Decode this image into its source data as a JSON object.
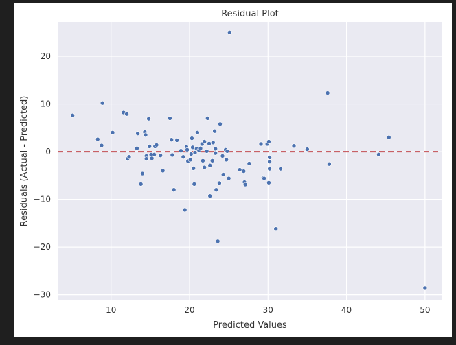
{
  "chart_data": {
    "type": "scatter",
    "title": "Residual Plot",
    "xlabel": "Predicted Values",
    "ylabel": "Residuals (Actual - Predicted)",
    "xlim": [
      3.2,
      52.2
    ],
    "ylim": [
      -31.2,
      27.2
    ],
    "xticks": [
      10,
      20,
      30,
      40,
      50
    ],
    "yticks": [
      -30,
      -20,
      -10,
      0,
      10,
      20
    ],
    "grid": true,
    "reference_line": {
      "y": 0,
      "style": "dashed",
      "color": "#c44e52"
    },
    "marker_color": "#4c72b0",
    "points": [
      [
        5.1,
        7.6
      ],
      [
        8.3,
        2.6
      ],
      [
        8.8,
        1.3
      ],
      [
        8.9,
        10.2
      ],
      [
        10.2,
        4.0
      ],
      [
        11.6,
        8.2
      ],
      [
        12.0,
        7.9
      ],
      [
        12.1,
        -1.5
      ],
      [
        12.3,
        -1.1
      ],
      [
        13.3,
        0.7
      ],
      [
        13.4,
        3.8
      ],
      [
        13.8,
        -6.8
      ],
      [
        14.0,
        -4.6
      ],
      [
        14.3,
        4.1
      ],
      [
        14.4,
        3.5
      ],
      [
        14.5,
        -0.9
      ],
      [
        14.5,
        -1.5
      ],
      [
        14.8,
        6.9
      ],
      [
        14.9,
        1.1
      ],
      [
        15.1,
        -0.6
      ],
      [
        15.2,
        -1.4
      ],
      [
        15.5,
        -0.6
      ],
      [
        15.6,
        1.1
      ],
      [
        15.8,
        1.4
      ],
      [
        16.3,
        -0.8
      ],
      [
        16.6,
        -4.0
      ],
      [
        17.5,
        7.0
      ],
      [
        17.7,
        2.5
      ],
      [
        17.8,
        -0.7
      ],
      [
        18.0,
        -8.0
      ],
      [
        18.4,
        2.4
      ],
      [
        18.9,
        0.2
      ],
      [
        19.2,
        -1.1
      ],
      [
        19.4,
        -12.2
      ],
      [
        19.6,
        1.0
      ],
      [
        19.7,
        0.4
      ],
      [
        19.8,
        -2.0
      ],
      [
        20.1,
        -1.7
      ],
      [
        20.2,
        -0.5
      ],
      [
        20.3,
        2.8
      ],
      [
        20.4,
        0.9
      ],
      [
        20.5,
        -3.5
      ],
      [
        20.6,
        -6.8
      ],
      [
        20.7,
        -0.2
      ],
      [
        20.9,
        0.6
      ],
      [
        21.0,
        4.0
      ],
      [
        21.2,
        0.3
      ],
      [
        21.4,
        0.7
      ],
      [
        21.6,
        1.6
      ],
      [
        21.7,
        -1.9
      ],
      [
        21.9,
        2.1
      ],
      [
        21.9,
        -3.3
      ],
      [
        22.2,
        0.1
      ],
      [
        22.3,
        7.0
      ],
      [
        22.5,
        1.7
      ],
      [
        22.6,
        -2.9
      ],
      [
        22.6,
        -9.3
      ],
      [
        22.9,
        -1.9
      ],
      [
        23.0,
        1.9
      ],
      [
        23.2,
        4.3
      ],
      [
        23.3,
        0.6
      ],
      [
        23.3,
        -0.3
      ],
      [
        23.4,
        -8.0
      ],
      [
        23.6,
        -18.8
      ],
      [
        23.8,
        -6.6
      ],
      [
        23.9,
        5.8
      ],
      [
        24.2,
        -0.9
      ],
      [
        24.3,
        -4.8
      ],
      [
        24.6,
        0.4
      ],
      [
        24.7,
        -1.7
      ],
      [
        24.8,
        0.1
      ],
      [
        25.0,
        -5.6
      ],
      [
        25.1,
        25.0
      ],
      [
        26.4,
        -3.8
      ],
      [
        26.9,
        -4.1
      ],
      [
        27.0,
        -6.4
      ],
      [
        27.1,
        -6.9
      ],
      [
        27.6,
        -2.5
      ],
      [
        29.1,
        1.6
      ],
      [
        29.4,
        -5.4
      ],
      [
        29.5,
        -5.6
      ],
      [
        29.9,
        1.6
      ],
      [
        30.1,
        2.1
      ],
      [
        30.1,
        -6.5
      ],
      [
        30.2,
        -1.2
      ],
      [
        30.2,
        -2.1
      ],
      [
        30.2,
        -3.6
      ],
      [
        31.0,
        -16.2
      ],
      [
        31.6,
        -3.6
      ],
      [
        33.3,
        1.2
      ],
      [
        35.0,
        0.5
      ],
      [
        37.6,
        12.3
      ],
      [
        37.8,
        -2.6
      ],
      [
        44.1,
        -0.6
      ],
      [
        45.4,
        3.0
      ],
      [
        50.0,
        -28.6
      ]
    ]
  }
}
